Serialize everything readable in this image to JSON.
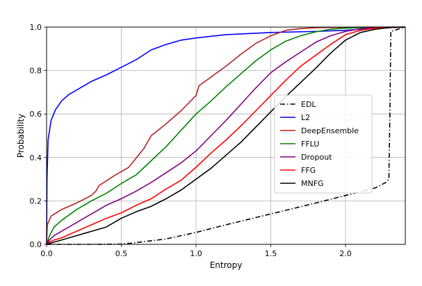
{
  "chart_data": {
    "type": "line",
    "title": "",
    "xlabel": "Entropy",
    "ylabel": "Probability",
    "xlim": [
      0,
      2.4
    ],
    "ylim": [
      0,
      1.0
    ],
    "grid": true,
    "legend_position": "center-right",
    "x_ticks": [
      {
        "value": 0.0,
        "label": "0.0"
      },
      {
        "value": 0.5,
        "label": "0.5"
      },
      {
        "value": 1.0,
        "label": "1.0"
      },
      {
        "value": 1.5,
        "label": "1.5"
      },
      {
        "value": 2.0,
        "label": "2.0"
      }
    ],
    "y_ticks": [
      {
        "value": 0.0,
        "label": "0.0"
      },
      {
        "value": 0.2,
        "label": "0.2"
      },
      {
        "value": 0.4,
        "label": "0.4"
      },
      {
        "value": 0.6,
        "label": "0.6"
      },
      {
        "value": 0.8,
        "label": "0.8"
      },
      {
        "value": 1.0,
        "label": "1.0"
      }
    ],
    "series": [
      {
        "name": "EDL",
        "color": "#000000",
        "dash": "dashdot",
        "x": [
          0,
          0.3,
          0.5,
          0.6,
          0.8,
          1.0,
          1.2,
          1.5,
          1.8,
          2.0,
          2.2,
          2.27,
          2.29,
          2.297,
          2.303,
          2.4
        ],
        "y": [
          0,
          0,
          0.001,
          0.008,
          0.025,
          0.055,
          0.09,
          0.14,
          0.19,
          0.225,
          0.26,
          0.285,
          0.3,
          0.6,
          0.98,
          1.0
        ]
      },
      {
        "name": "L2",
        "color": "#0000ff",
        "dash": "solid",
        "x": [
          0,
          0.003,
          0.01,
          0.03,
          0.06,
          0.1,
          0.15,
          0.2,
          0.3,
          0.4,
          0.5,
          0.6,
          0.7,
          0.8,
          0.9,
          1.0,
          1.2,
          1.5,
          1.8,
          2.0,
          2.2,
          2.4
        ],
        "y": [
          0,
          0.3,
          0.48,
          0.57,
          0.62,
          0.66,
          0.69,
          0.71,
          0.75,
          0.78,
          0.815,
          0.85,
          0.895,
          0.92,
          0.94,
          0.95,
          0.965,
          0.975,
          0.98,
          0.985,
          0.995,
          1.0
        ]
      },
      {
        "name": "DeepEnsemble",
        "color": "#b22222",
        "dash": "solid",
        "x": [
          0,
          0.005,
          0.03,
          0.1,
          0.2,
          0.3,
          0.33,
          0.35,
          0.45,
          0.55,
          0.65,
          0.7,
          0.8,
          0.9,
          1.0,
          1.02,
          1.1,
          1.2,
          1.3,
          1.4,
          1.5,
          1.6,
          1.7,
          1.8,
          2.0,
          2.2,
          2.4
        ],
        "y": [
          0,
          0.09,
          0.13,
          0.16,
          0.19,
          0.225,
          0.245,
          0.27,
          0.315,
          0.355,
          0.44,
          0.5,
          0.555,
          0.615,
          0.685,
          0.73,
          0.77,
          0.82,
          0.875,
          0.925,
          0.96,
          0.985,
          0.993,
          0.997,
          0.999,
          1.0,
          1.0
        ]
      },
      {
        "name": "FFLU",
        "color": "#008000",
        "dash": "solid",
        "x": [
          0,
          0.02,
          0.05,
          0.1,
          0.2,
          0.3,
          0.4,
          0.5,
          0.6,
          0.7,
          0.8,
          0.9,
          1.0,
          1.1,
          1.2,
          1.3,
          1.4,
          1.5,
          1.6,
          1.7,
          1.8,
          1.9,
          2.0,
          2.2,
          2.4
        ],
        "y": [
          0,
          0.04,
          0.08,
          0.11,
          0.16,
          0.2,
          0.235,
          0.28,
          0.32,
          0.385,
          0.45,
          0.525,
          0.6,
          0.66,
          0.725,
          0.785,
          0.845,
          0.895,
          0.935,
          0.96,
          0.978,
          0.99,
          0.995,
          0.999,
          1.0
        ]
      },
      {
        "name": "Dropout",
        "color": "#800080",
        "dash": "solid",
        "x": [
          0,
          0.02,
          0.05,
          0.1,
          0.2,
          0.3,
          0.4,
          0.5,
          0.6,
          0.7,
          0.8,
          0.9,
          1.0,
          1.1,
          1.2,
          1.3,
          1.4,
          1.5,
          1.6,
          1.7,
          1.8,
          1.9,
          2.0,
          2.1,
          2.2,
          2.4
        ],
        "y": [
          0,
          0.02,
          0.04,
          0.06,
          0.1,
          0.14,
          0.18,
          0.21,
          0.245,
          0.285,
          0.33,
          0.375,
          0.43,
          0.5,
          0.57,
          0.645,
          0.72,
          0.79,
          0.84,
          0.885,
          0.93,
          0.96,
          0.98,
          0.992,
          0.998,
          1.0
        ]
      },
      {
        "name": "FFG",
        "color": "#ff0000",
        "dash": "solid",
        "x": [
          0,
          0.02,
          0.05,
          0.1,
          0.2,
          0.3,
          0.4,
          0.5,
          0.6,
          0.7,
          0.8,
          0.9,
          1.0,
          1.1,
          1.2,
          1.3,
          1.4,
          1.5,
          1.6,
          1.7,
          1.8,
          1.9,
          2.0,
          2.1,
          2.2,
          2.4
        ],
        "y": [
          0,
          0.01,
          0.02,
          0.03,
          0.06,
          0.09,
          0.12,
          0.145,
          0.18,
          0.21,
          0.255,
          0.295,
          0.355,
          0.42,
          0.48,
          0.545,
          0.615,
          0.685,
          0.755,
          0.82,
          0.87,
          0.92,
          0.965,
          0.985,
          0.995,
          1.0
        ]
      },
      {
        "name": "MNFG",
        "color": "#000000",
        "dash": "solid",
        "x": [
          0,
          0.05,
          0.1,
          0.2,
          0.3,
          0.4,
          0.5,
          0.6,
          0.7,
          0.8,
          0.9,
          1.0,
          1.1,
          1.2,
          1.3,
          1.4,
          1.5,
          1.6,
          1.7,
          1.8,
          1.9,
          2.0,
          2.1,
          2.2,
          2.3,
          2.4
        ],
        "y": [
          0,
          0.01,
          0.02,
          0.04,
          0.06,
          0.08,
          0.12,
          0.15,
          0.175,
          0.21,
          0.25,
          0.3,
          0.35,
          0.41,
          0.47,
          0.54,
          0.61,
          0.68,
          0.745,
          0.81,
          0.88,
          0.94,
          0.975,
          0.99,
          0.998,
          1.0
        ]
      }
    ]
  }
}
